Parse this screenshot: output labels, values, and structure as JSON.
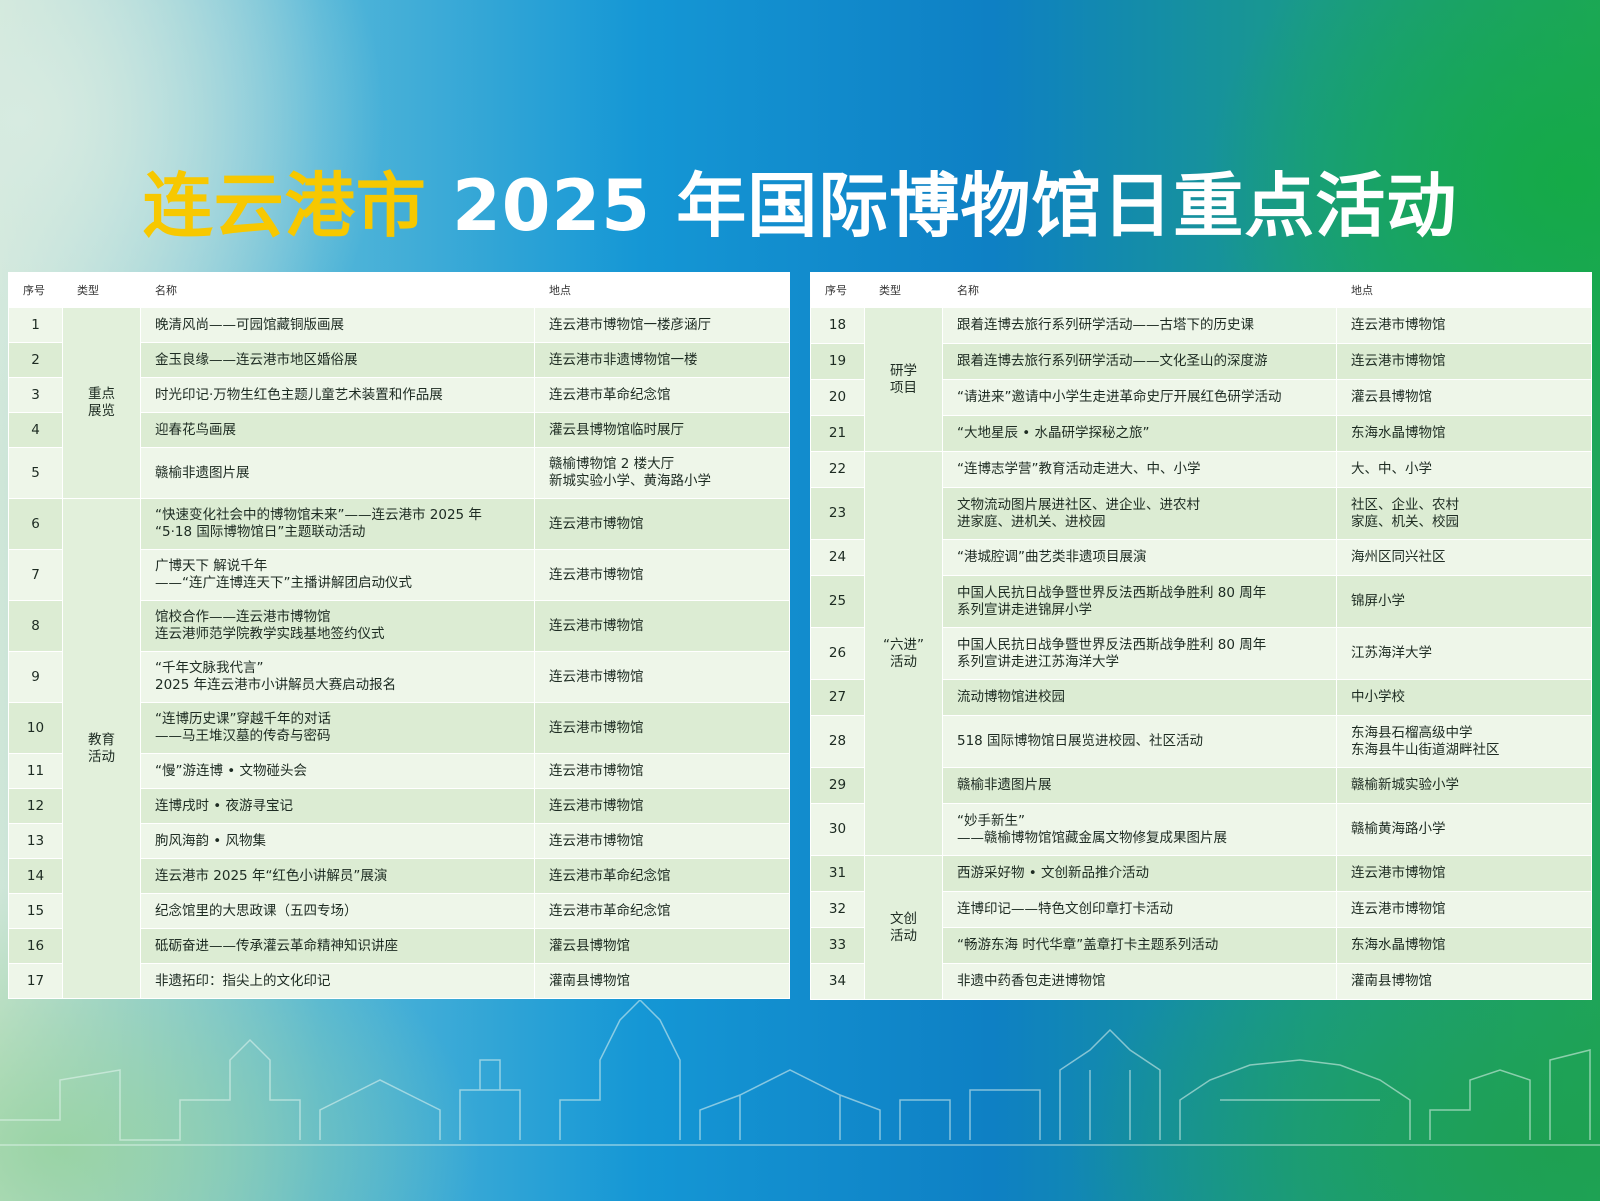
{
  "title": {
    "highlight": "连云港市",
    "rest": " 2025 年国际博物馆日重点活动"
  },
  "headers": {
    "num": "序号",
    "type": "类型",
    "name": "名称",
    "place": "地点"
  },
  "left_categories": [
    {
      "label_line1": "重点",
      "label_line2": "展览"
    },
    {
      "label_line1": "教育",
      "label_line2": "活动"
    }
  ],
  "left_rows": [
    {
      "num": "1",
      "name_line1": "晚清风尚——可园馆藏铜版画展",
      "name_line2": "",
      "place_line1": "连云港市博物馆一楼彦涵厅",
      "place_line2": ""
    },
    {
      "num": "2",
      "name_line1": "金玉良缘——连云港市地区婚俗展",
      "name_line2": "",
      "place_line1": "连云港市非遗博物馆一楼",
      "place_line2": ""
    },
    {
      "num": "3",
      "name_line1": "时光印记·万物生红色主题儿童艺术装置和作品展",
      "name_line2": "",
      "place_line1": "连云港市革命纪念馆",
      "place_line2": ""
    },
    {
      "num": "4",
      "name_line1": "迎春花鸟画展",
      "name_line2": "",
      "place_line1": "灌云县博物馆临时展厅",
      "place_line2": ""
    },
    {
      "num": "5",
      "name_line1": "赣榆非遗图片展",
      "name_line2": "",
      "place_line1": "赣榆博物馆 2 楼大厅",
      "place_line2": "新城实验小学、黄海路小学"
    },
    {
      "num": "6",
      "name_line1": "“快速变化社会中的博物馆未来”——连云港市 2025 年",
      "name_line2": "“5·18 国际博物馆日”主题联动活动",
      "place_line1": "连云港市博物馆",
      "place_line2": ""
    },
    {
      "num": "7",
      "name_line1": "广博天下 解说千年",
      "name_line2": "——“连广连博连天下”主播讲解团启动仪式",
      "place_line1": "连云港市博物馆",
      "place_line2": ""
    },
    {
      "num": "8",
      "name_line1": "馆校合作——连云港市博物馆",
      "name_line2": "连云港师范学院教学实践基地签约仪式",
      "place_line1": "连云港市博物馆",
      "place_line2": ""
    },
    {
      "num": "9",
      "name_line1": "“千年文脉我代言”",
      "name_line2": "2025 年连云港市小讲解员大赛启动报名",
      "place_line1": "连云港市博物馆",
      "place_line2": ""
    },
    {
      "num": "10",
      "name_line1": "“连博历史课”穿越千年的对话",
      "name_line2": "——马王堆汉墓的传奇与密码",
      "place_line1": "连云港市博物馆",
      "place_line2": ""
    },
    {
      "num": "11",
      "name_line1": "“慢”游连博 • 文物碰头会",
      "name_line2": "",
      "place_line1": "连云港市博物馆",
      "place_line2": ""
    },
    {
      "num": "12",
      "name_line1": "连博戌时 • 夜游寻宝记",
      "name_line2": "",
      "place_line1": "连云港市博物馆",
      "place_line2": ""
    },
    {
      "num": "13",
      "name_line1": "朐风海韵 • 风物集",
      "name_line2": "",
      "place_line1": "连云港市博物馆",
      "place_line2": ""
    },
    {
      "num": "14",
      "name_line1": "连云港市 2025 年“红色小讲解员”展演",
      "name_line2": "",
      "place_line1": "连云港市革命纪念馆",
      "place_line2": ""
    },
    {
      "num": "15",
      "name_line1": "纪念馆里的大思政课（五四专场）",
      "name_line2": "",
      "place_line1": "连云港市革命纪念馆",
      "place_line2": ""
    },
    {
      "num": "16",
      "name_line1": "砥砺奋进——传承灌云革命精神知识讲座",
      "name_line2": "",
      "place_line1": "灌云县博物馆",
      "place_line2": ""
    },
    {
      "num": "17",
      "name_line1": "非遗拓印：指尖上的文化印记",
      "name_line2": "",
      "place_line1": "灌南县博物馆",
      "place_line2": ""
    }
  ],
  "right_categories": [
    {
      "label_line1": "",
      "label_line2": ""
    },
    {
      "label_line1": "研学",
      "label_line2": "项目"
    },
    {
      "label_line1": "“六进”",
      "label_line2": "活动"
    },
    {
      "label_line1": "文创",
      "label_line2": "活动"
    }
  ],
  "right_rows": [
    {
      "num": "18",
      "name_line1": "跟着连博去旅行系列研学活动——古塔下的历史课",
      "name_line2": "",
      "place_line1": "连云港市博物馆",
      "place_line2": ""
    },
    {
      "num": "19",
      "name_line1": "跟着连博去旅行系列研学活动——文化圣山的深度游",
      "name_line2": "",
      "place_line1": "连云港市博物馆",
      "place_line2": ""
    },
    {
      "num": "20",
      "name_line1": "“请进来”邀请中小学生走进革命史厅开展红色研学活动",
      "name_line2": "",
      "place_line1": "灌云县博物馆",
      "place_line2": ""
    },
    {
      "num": "21",
      "name_line1": "“大地星辰 • 水晶研学探秘之旅”",
      "name_line2": "",
      "place_line1": "东海水晶博物馆",
      "place_line2": ""
    },
    {
      "num": "22",
      "name_line1": "“连博志学营”教育活动走进大、中、小学",
      "name_line2": "",
      "place_line1": "大、中、小学",
      "place_line2": ""
    },
    {
      "num": "23",
      "name_line1": "文物流动图片展进社区、进企业、进农村",
      "name_line2": "进家庭、进机关、进校园",
      "place_line1": "社区、企业、农村",
      "place_line2": "家庭、机关、校园"
    },
    {
      "num": "24",
      "name_line1": "“港城腔调”曲艺类非遗项目展演",
      "name_line2": "",
      "place_line1": "海州区同兴社区",
      "place_line2": ""
    },
    {
      "num": "25",
      "name_line1": "中国人民抗日战争暨世界反法西斯战争胜利 80 周年",
      "name_line2": "系列宣讲走进锦屏小学",
      "place_line1": "锦屏小学",
      "place_line2": ""
    },
    {
      "num": "26",
      "name_line1": "中国人民抗日战争暨世界反法西斯战争胜利 80 周年",
      "name_line2": "系列宣讲走进江苏海洋大学",
      "place_line1": "江苏海洋大学",
      "place_line2": ""
    },
    {
      "num": "27",
      "name_line1": "流动博物馆进校园",
      "name_line2": "",
      "place_line1": "中小学校",
      "place_line2": ""
    },
    {
      "num": "28",
      "name_line1": "518 国际博物馆日展览进校园、社区活动",
      "name_line2": "",
      "place_line1": "东海县石榴高级中学",
      "place_line2": "东海县牛山街道湖畔社区"
    },
    {
      "num": "29",
      "name_line1": "赣榆非遗图片展",
      "name_line2": "",
      "place_line1": "赣榆新城实验小学",
      "place_line2": ""
    },
    {
      "num": "30",
      "name_line1": "“妙手新生”",
      "name_line2": "——赣榆博物馆馆藏金属文物修复成果图片展",
      "place_line1": "赣榆黄海路小学",
      "place_line2": ""
    },
    {
      "num": "31",
      "name_line1": "西游采好物 • 文创新品推介活动",
      "name_line2": "",
      "place_line1": "连云港市博物馆",
      "place_line2": ""
    },
    {
      "num": "32",
      "name_line1": "连博印记——特色文创印章打卡活动",
      "name_line2": "",
      "place_line1": "连云港市博物馆",
      "place_line2": ""
    },
    {
      "num": "33",
      "name_line1": "“畅游东海 时代华章”盖章打卡主题系列活动",
      "name_line2": "",
      "place_line1": "东海水晶博物馆",
      "place_line2": ""
    },
    {
      "num": "34",
      "name_line1": "非遗中药香包走进博物馆",
      "name_line2": "",
      "place_line1": "灌南县博物馆",
      "place_line2": ""
    }
  ]
}
